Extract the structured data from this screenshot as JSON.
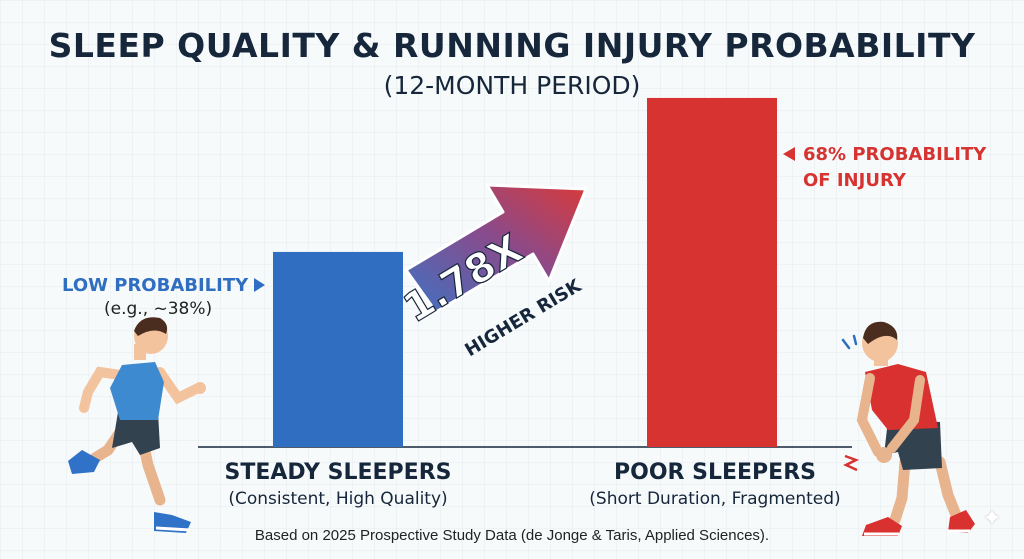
{
  "chart_data": {
    "type": "bar",
    "title": "SLEEP QUALITY & RUNNING INJURY PROBABILITY",
    "subtitle": "(12-MONTH PERIOD)",
    "categories": [
      "STEADY SLEEPERS",
      "POOR SLEEPERS"
    ],
    "category_notes": [
      "(Consistent, High Quality)",
      "(Short Duration, Fragmented)"
    ],
    "values": [
      38,
      68
    ],
    "unit": "%",
    "ylim": [
      0,
      75
    ],
    "grid": false,
    "colors": [
      "#2f6ec0",
      "#d63331"
    ],
    "annotations": {
      "low_label": "LOW PROBABILITY",
      "low_sub": "(e.g., ~38%)",
      "high_line1": "68% PROBABILITY",
      "high_line2": "OF INJURY",
      "ratio_value": "1.78X",
      "ratio_label": "HIGHER RISK"
    },
    "footer": "Based on 2025 Prospective Study Data (de Jonge & Taris, Applied Sciences)."
  },
  "illustrations": {
    "left_figure": "running-man-icon",
    "right_figure": "injured-runner-icon"
  },
  "watermark": "✦"
}
